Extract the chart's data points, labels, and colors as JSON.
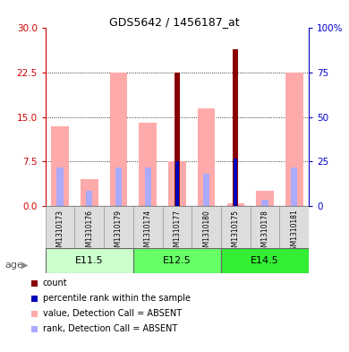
{
  "title": "GDS5642 / 1456187_at",
  "samples": [
    "GSM1310173",
    "GSM1310176",
    "GSM1310179",
    "GSM1310174",
    "GSM1310177",
    "GSM1310180",
    "GSM1310175",
    "GSM1310178",
    "GSM1310181"
  ],
  "age_groups": [
    {
      "label": "E11.5",
      "start": 0,
      "end": 3
    },
    {
      "label": "E12.5",
      "start": 3,
      "end": 6
    },
    {
      "label": "E14.5",
      "start": 6,
      "end": 9
    }
  ],
  "age_colors": [
    "#ccffcc",
    "#66ff66",
    "#33ee33"
  ],
  "pink_bar_values": [
    13.5,
    4.5,
    22.5,
    14.0,
    7.5,
    16.5,
    0.5,
    2.5,
    22.5
  ],
  "light_blue_bar_values": [
    6.5,
    2.5,
    6.5,
    6.5,
    0.0,
    5.5,
    0.0,
    1.0,
    6.5
  ],
  "red_bar_values": [
    0,
    0,
    0,
    0,
    22.5,
    0,
    26.5,
    0,
    0
  ],
  "blue_square_values": [
    0,
    0,
    0,
    0,
    7.5,
    0,
    8.0,
    0,
    0
  ],
  "ylim_left": [
    0,
    30
  ],
  "yticks_left": [
    0,
    7.5,
    15,
    22.5,
    30
  ],
  "ylim_right": [
    0,
    100
  ],
  "yticks_right": [
    0,
    25,
    50,
    75,
    100
  ],
  "right_ytick_labels": [
    "0",
    "25",
    "50",
    "75",
    "100%"
  ],
  "left_tick_color": "#cc0000",
  "right_tick_color": "#0000cc",
  "pink_color": "#ffaaaa",
  "light_blue_color": "#aaaaff",
  "red_color": "#880000",
  "blue_color": "#0000bb",
  "legend_items": [
    {
      "color": "#880000",
      "label": "count"
    },
    {
      "color": "#0000bb",
      "label": "percentile rank within the sample"
    },
    {
      "color": "#ffaaaa",
      "label": "value, Detection Call = ABSENT"
    },
    {
      "color": "#aaaaff",
      "label": "rank, Detection Call = ABSENT"
    }
  ]
}
